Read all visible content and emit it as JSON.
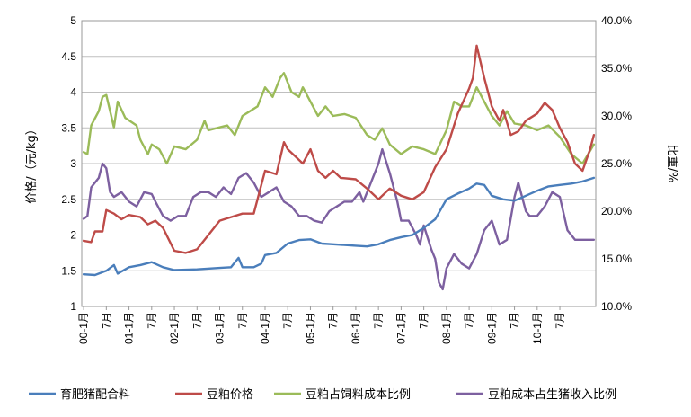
{
  "chart_data": {
    "type": "line",
    "title": "",
    "ylabel_left": "价格/（元/kg）",
    "ylabel_right": "比重/%",
    "ylim_left": [
      1,
      5
    ],
    "ylim_right": [
      10,
      40
    ],
    "yticks_left": [
      "1",
      "1.5",
      "2",
      "2.5",
      "3",
      "3.5",
      "4",
      "4.5",
      "5"
    ],
    "yticks_right": [
      "10.0%",
      "15.0%",
      "20.0%",
      "25.0%",
      "30.0%",
      "35.0%",
      "40.0%"
    ],
    "x_tick_labels": [
      "00-1月",
      "7月",
      "01-1月",
      "7月",
      "02-1月",
      "7月",
      "03-1月",
      "7月",
      "04-1月",
      "7月",
      "05-1月",
      "7月",
      "06-1月",
      "7月",
      "07-1月",
      "7月",
      "08-1月",
      "7月",
      "09-1月",
      "7月",
      "10-1月",
      "7月"
    ],
    "grid": "horizontal",
    "legend_position": "bottom",
    "series": [
      {
        "name": "育肥猪配合料",
        "axis": "left",
        "color": "#4a7ebb",
        "points": [
          [
            0,
            1.45
          ],
          [
            3,
            1.44
          ],
          [
            6,
            1.5
          ],
          [
            8,
            1.58
          ],
          [
            9,
            1.46
          ],
          [
            12,
            1.55
          ],
          [
            15,
            1.58
          ],
          [
            18,
            1.62
          ],
          [
            21,
            1.55
          ],
          [
            24,
            1.51
          ],
          [
            30,
            1.52
          ],
          [
            36,
            1.54
          ],
          [
            39,
            1.55
          ],
          [
            41,
            1.68
          ],
          [
            42,
            1.55
          ],
          [
            45,
            1.55
          ],
          [
            47,
            1.6
          ],
          [
            48,
            1.72
          ],
          [
            51,
            1.75
          ],
          [
            54,
            1.88
          ],
          [
            57,
            1.93
          ],
          [
            60,
            1.94
          ],
          [
            63,
            1.88
          ],
          [
            66,
            1.87
          ],
          [
            72,
            1.85
          ],
          [
            75,
            1.84
          ],
          [
            78,
            1.87
          ],
          [
            81,
            1.93
          ],
          [
            84,
            1.97
          ],
          [
            87,
            2.0
          ],
          [
            90,
            2.1
          ],
          [
            93,
            2.22
          ],
          [
            96,
            2.5
          ],
          [
            99,
            2.58
          ],
          [
            102,
            2.65
          ],
          [
            104,
            2.72
          ],
          [
            106,
            2.7
          ],
          [
            108,
            2.55
          ],
          [
            111,
            2.5
          ],
          [
            114,
            2.48
          ],
          [
            117,
            2.55
          ],
          [
            120,
            2.62
          ],
          [
            123,
            2.68
          ],
          [
            126,
            2.7
          ],
          [
            129,
            2.72
          ],
          [
            132,
            2.75
          ],
          [
            135,
            2.8
          ]
        ]
      },
      {
        "name": "豆粕价格",
        "axis": "left",
        "color": "#be4b48",
        "points": [
          [
            0,
            1.92
          ],
          [
            2,
            1.9
          ],
          [
            3,
            2.05
          ],
          [
            5,
            2.05
          ],
          [
            6,
            2.35
          ],
          [
            8,
            2.3
          ],
          [
            10,
            2.22
          ],
          [
            12,
            2.28
          ],
          [
            15,
            2.25
          ],
          [
            17,
            2.15
          ],
          [
            19,
            2.2
          ],
          [
            21,
            2.1
          ],
          [
            24,
            1.78
          ],
          [
            27,
            1.75
          ],
          [
            30,
            1.8
          ],
          [
            33,
            2.0
          ],
          [
            36,
            2.2
          ],
          [
            39,
            2.25
          ],
          [
            42,
            2.3
          ],
          [
            45,
            2.3
          ],
          [
            47,
            2.7
          ],
          [
            48,
            2.9
          ],
          [
            51,
            2.85
          ],
          [
            53,
            3.3
          ],
          [
            54,
            3.2
          ],
          [
            56,
            3.1
          ],
          [
            58,
            3.0
          ],
          [
            60,
            3.2
          ],
          [
            62,
            2.9
          ],
          [
            64,
            2.8
          ],
          [
            66,
            2.9
          ],
          [
            68,
            2.8
          ],
          [
            72,
            2.78
          ],
          [
            75,
            2.65
          ],
          [
            78,
            2.5
          ],
          [
            81,
            2.65
          ],
          [
            84,
            2.55
          ],
          [
            87,
            2.5
          ],
          [
            90,
            2.6
          ],
          [
            93,
            2.95
          ],
          [
            96,
            3.2
          ],
          [
            99,
            3.7
          ],
          [
            102,
            4.05
          ],
          [
            103,
            4.2
          ],
          [
            104,
            4.65
          ],
          [
            106,
            4.2
          ],
          [
            108,
            3.8
          ],
          [
            110,
            3.6
          ],
          [
            111,
            3.75
          ],
          [
            113,
            3.4
          ],
          [
            115,
            3.45
          ],
          [
            117,
            3.6
          ],
          [
            120,
            3.7
          ],
          [
            122,
            3.85
          ],
          [
            124,
            3.75
          ],
          [
            126,
            3.5
          ],
          [
            128,
            3.3
          ],
          [
            130,
            3.0
          ],
          [
            132,
            2.9
          ],
          [
            134,
            3.2
          ],
          [
            135,
            3.4
          ]
        ]
      },
      {
        "name": "豆粕占饲料成本比例",
        "axis": "right",
        "color": "#9bbb59",
        "points": [
          [
            0,
            26.2
          ],
          [
            1,
            26.0
          ],
          [
            2,
            29.0
          ],
          [
            4,
            30.5
          ],
          [
            5,
            32.0
          ],
          [
            6,
            32.2
          ],
          [
            8,
            28.8
          ],
          [
            9,
            31.5
          ],
          [
            11,
            29.8
          ],
          [
            14,
            29.0
          ],
          [
            15,
            27.5
          ],
          [
            17,
            26.0
          ],
          [
            18,
            27.0
          ],
          [
            20,
            26.5
          ],
          [
            22,
            25.0
          ],
          [
            24,
            26.8
          ],
          [
            27,
            26.5
          ],
          [
            30,
            27.5
          ],
          [
            32,
            29.5
          ],
          [
            33,
            28.5
          ],
          [
            36,
            28.8
          ],
          [
            38,
            29.0
          ],
          [
            40,
            28.0
          ],
          [
            42,
            30.0
          ],
          [
            44,
            30.5
          ],
          [
            46,
            31.0
          ],
          [
            48,
            33.0
          ],
          [
            50,
            32.0
          ],
          [
            52,
            34.0
          ],
          [
            53,
            34.5
          ],
          [
            55,
            32.5
          ],
          [
            57,
            32.0
          ],
          [
            58,
            33.0
          ],
          [
            60,
            31.5
          ],
          [
            62,
            30.0
          ],
          [
            64,
            31.0
          ],
          [
            66,
            30.0
          ],
          [
            69,
            30.2
          ],
          [
            72,
            29.8
          ],
          [
            75,
            28.0
          ],
          [
            77,
            27.5
          ],
          [
            79,
            28.7
          ],
          [
            81,
            27.0
          ],
          [
            84,
            26.0
          ],
          [
            87,
            26.8
          ],
          [
            90,
            26.5
          ],
          [
            93,
            26.0
          ],
          [
            96,
            28.5
          ],
          [
            98,
            31.5
          ],
          [
            100,
            31.0
          ],
          [
            102,
            31.0
          ],
          [
            104,
            33.0
          ],
          [
            106,
            31.5
          ],
          [
            108,
            30.0
          ],
          [
            110,
            29.0
          ],
          [
            112,
            30.5
          ],
          [
            114,
            29.2
          ],
          [
            117,
            29.0
          ],
          [
            120,
            28.5
          ],
          [
            123,
            29.0
          ],
          [
            126,
            27.8
          ],
          [
            129,
            26.0
          ],
          [
            132,
            25.0
          ],
          [
            135,
            27.0
          ]
        ]
      },
      {
        "name": "豆粕成本占生猪收入比例",
        "axis": "right",
        "color": "#7d60a0",
        "points": [
          [
            0,
            19.2
          ],
          [
            1,
            19.5
          ],
          [
            2,
            22.5
          ],
          [
            4,
            23.5
          ],
          [
            5,
            25.0
          ],
          [
            6,
            24.5
          ],
          [
            7,
            22.0
          ],
          [
            8,
            21.5
          ],
          [
            10,
            22.0
          ],
          [
            12,
            21.0
          ],
          [
            14,
            20.5
          ],
          [
            16,
            22.0
          ],
          [
            18,
            21.8
          ],
          [
            19,
            21.0
          ],
          [
            21,
            19.5
          ],
          [
            23,
            19.0
          ],
          [
            25,
            19.5
          ],
          [
            27,
            19.5
          ],
          [
            29,
            21.5
          ],
          [
            31,
            22.0
          ],
          [
            33,
            22.0
          ],
          [
            35,
            21.5
          ],
          [
            37,
            22.5
          ],
          [
            39,
            21.8
          ],
          [
            41,
            23.5
          ],
          [
            43,
            24.0
          ],
          [
            45,
            23.0
          ],
          [
            47,
            21.5
          ],
          [
            49,
            22.0
          ],
          [
            51,
            22.5
          ],
          [
            53,
            21.0
          ],
          [
            55,
            20.5
          ],
          [
            57,
            19.5
          ],
          [
            59,
            19.5
          ],
          [
            61,
            19.0
          ],
          [
            63,
            18.8
          ],
          [
            65,
            20.0
          ],
          [
            67,
            20.5
          ],
          [
            69,
            21.0
          ],
          [
            71,
            21.0
          ],
          [
            73,
            22.0
          ],
          [
            74,
            21.0
          ],
          [
            76,
            23.0
          ],
          [
            78,
            25.0
          ],
          [
            79,
            26.5
          ],
          [
            81,
            24.0
          ],
          [
            83,
            21.0
          ],
          [
            84,
            19.0
          ],
          [
            86,
            19.0
          ],
          [
            88,
            17.5
          ],
          [
            89,
            16.5
          ],
          [
            90,
            18.5
          ],
          [
            92,
            16.0
          ],
          [
            93,
            15.0
          ],
          [
            94,
            12.5
          ],
          [
            95,
            11.8
          ],
          [
            96,
            14.0
          ],
          [
            98,
            15.5
          ],
          [
            100,
            14.5
          ],
          [
            102,
            14.0
          ],
          [
            104,
            15.5
          ],
          [
            106,
            18.0
          ],
          [
            108,
            19.0
          ],
          [
            110,
            16.5
          ],
          [
            112,
            17.0
          ],
          [
            114,
            21.5
          ],
          [
            115,
            23.0
          ],
          [
            117,
            20.0
          ],
          [
            118,
            19.5
          ],
          [
            120,
            19.5
          ],
          [
            122,
            20.5
          ],
          [
            124,
            22.0
          ],
          [
            126,
            21.5
          ],
          [
            128,
            18.0
          ],
          [
            130,
            17.0
          ],
          [
            132,
            17.0
          ],
          [
            135,
            17.0
          ]
        ]
      }
    ]
  }
}
